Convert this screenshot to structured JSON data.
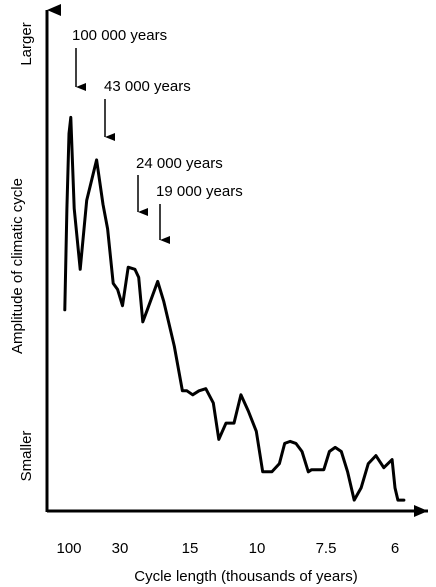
{
  "chart_data": {
    "type": "line",
    "title": "",
    "xlabel": "Cycle length (thousands of years)",
    "ylabel": "Amplitude of climatic cycle",
    "y_top_label": "Larger",
    "y_bottom_label": "Smaller",
    "x_tick_labels": [
      "100",
      "30",
      "15",
      "10",
      "7.5",
      "6"
    ],
    "grid": false,
    "annotations": [
      {
        "text": "100 000 years"
      },
      {
        "text": "43 000 years"
      },
      {
        "text": "24 000 years"
      },
      {
        "text": "19 000 years"
      }
    ],
    "series": [
      {
        "color": "#000000",
        "x_note": "cycle length in thousands of years, decreasing left to right (frequency-spaced axis)",
        "points": [
          [
            125,
            0.45
          ],
          [
            111,
            0.7
          ],
          [
            100,
            0.885
          ],
          [
            92,
            0.925
          ],
          [
            80,
            0.7
          ],
          [
            65,
            0.55
          ],
          [
            54,
            0.72
          ],
          [
            43,
            0.82
          ],
          [
            38,
            0.71
          ],
          [
            35,
            0.65
          ],
          [
            32,
            0.515
          ],
          [
            30,
            0.5
          ],
          [
            28,
            0.46
          ],
          [
            26,
            0.555
          ],
          [
            24,
            0.55
          ],
          [
            23,
            0.53
          ],
          [
            22,
            0.42
          ],
          [
            21,
            0.45
          ],
          [
            19,
            0.52
          ],
          [
            18,
            0.47
          ],
          [
            16.5,
            0.36
          ],
          [
            15.5,
            0.25
          ],
          [
            15,
            0.25
          ],
          [
            14.4,
            0.24
          ],
          [
            13.8,
            0.25
          ],
          [
            13.2,
            0.255
          ],
          [
            12.6,
            0.22
          ],
          [
            12.2,
            0.13
          ],
          [
            11.7,
            0.17
          ],
          [
            11.2,
            0.17
          ],
          [
            10.8,
            0.24
          ],
          [
            10.4,
            0.2
          ],
          [
            10,
            0.15
          ],
          [
            9.7,
            0.05
          ],
          [
            9.3,
            0.05
          ],
          [
            9.0,
            0.07
          ],
          [
            8.8,
            0.12
          ],
          [
            8.6,
            0.125
          ],
          [
            8.4,
            0.12
          ],
          [
            8.2,
            0.1
          ],
          [
            8.0,
            0.05
          ],
          [
            7.9,
            0.055
          ],
          [
            7.7,
            0.055
          ],
          [
            7.55,
            0.055
          ],
          [
            7.4,
            0.1
          ],
          [
            7.25,
            0.11
          ],
          [
            7.1,
            0.1
          ],
          [
            6.95,
            0.05
          ],
          [
            6.8,
            -0.02
          ],
          [
            6.65,
            0.01
          ],
          [
            6.5,
            0.07
          ],
          [
            6.35,
            0.09
          ],
          [
            6.2,
            0.06
          ],
          [
            6.05,
            0.08
          ],
          [
            6.0,
            0.01
          ],
          [
            5.95,
            -0.02
          ],
          [
            5.85,
            -0.02
          ]
        ]
      }
    ]
  }
}
